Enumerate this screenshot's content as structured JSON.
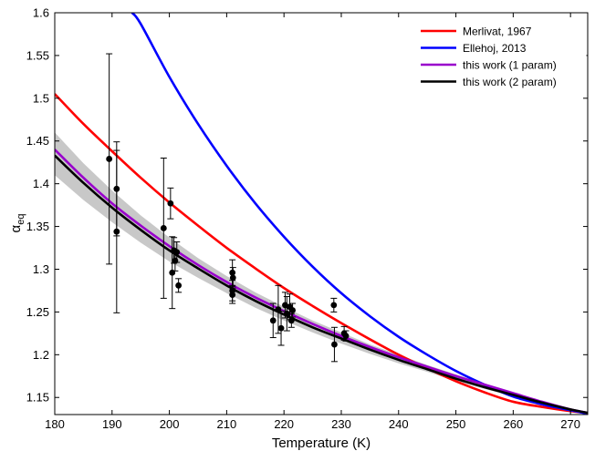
{
  "chart_data": {
    "type": "line",
    "xlabel": "Temperature (K)",
    "ylabel_main": "α",
    "ylabel_sub": "eq",
    "xlim": [
      180,
      273
    ],
    "ylim": [
      1.13,
      1.6
    ],
    "xticks": [
      180,
      190,
      200,
      210,
      220,
      230,
      240,
      250,
      260,
      270
    ],
    "yticks": [
      1.15,
      1.2,
      1.25,
      1.3,
      1.35,
      1.4,
      1.45,
      1.5,
      1.55,
      1.6
    ],
    "legend_position": "top-right",
    "band_color": "#c8c8c8",
    "series": [
      {
        "name": "Merlivat, 1967",
        "color": "#ff0000",
        "x": [
          180,
          185,
          190,
          195,
          200,
          205,
          210,
          215,
          220,
          225,
          230,
          235,
          240,
          245,
          250,
          255,
          260,
          265,
          270,
          273
        ],
        "y": [
          1.505,
          1.47,
          1.438,
          1.407,
          1.378,
          1.351,
          1.325,
          1.301,
          1.278,
          1.257,
          1.237,
          1.218,
          1.2,
          1.184,
          1.169,
          1.156,
          1.145,
          1.139,
          1.134,
          1.132
        ]
      },
      {
        "name": "Ellehoj, 2013",
        "color": "#0000ff",
        "x": [
          193.5,
          195,
          200,
          205,
          210,
          215,
          220,
          225,
          230,
          235,
          240,
          245,
          250,
          255,
          260,
          265,
          270,
          273
        ],
        "y": [
          1.6,
          1.587,
          1.525,
          1.47,
          1.421,
          1.377,
          1.338,
          1.303,
          1.272,
          1.245,
          1.221,
          1.2,
          1.181,
          1.165,
          1.151,
          1.142,
          1.135,
          1.131
        ]
      },
      {
        "name": "this work (1 param)",
        "color": "#9900cc",
        "x": [
          180,
          185,
          190,
          195,
          200,
          205,
          210,
          215,
          220,
          225,
          230,
          235,
          240,
          245,
          250,
          255,
          260,
          265,
          270,
          273
        ],
        "y": [
          1.44,
          1.407,
          1.377,
          1.351,
          1.327,
          1.305,
          1.285,
          1.267,
          1.251,
          1.236,
          1.222,
          1.209,
          1.197,
          1.186,
          1.175,
          1.165,
          1.155,
          1.145,
          1.136,
          1.132
        ]
      },
      {
        "name": "this work (2 param)",
        "color": "#000000",
        "x": [
          180,
          185,
          190,
          195,
          200,
          205,
          210,
          215,
          220,
          225,
          230,
          235,
          240,
          245,
          250,
          255,
          260,
          265,
          270,
          273
        ],
        "y": [
          1.433,
          1.401,
          1.372,
          1.346,
          1.322,
          1.301,
          1.281,
          1.263,
          1.247,
          1.232,
          1.219,
          1.206,
          1.194,
          1.183,
          1.172,
          1.162,
          1.153,
          1.144,
          1.136,
          1.132
        ]
      }
    ],
    "band": {
      "x": [
        180,
        185,
        190,
        195,
        200,
        205,
        210,
        215,
        220,
        225,
        230,
        235,
        240,
        245,
        250,
        255,
        260,
        265,
        270,
        273
      ],
      "upper": [
        1.46,
        1.424,
        1.392,
        1.363,
        1.337,
        1.313,
        1.292,
        1.273,
        1.256,
        1.24,
        1.226,
        1.212,
        1.2,
        1.188,
        1.177,
        1.166,
        1.156,
        1.146,
        1.137,
        1.133
      ],
      "lower": [
        1.41,
        1.381,
        1.355,
        1.331,
        1.309,
        1.29,
        1.272,
        1.255,
        1.24,
        1.226,
        1.213,
        1.201,
        1.19,
        1.18,
        1.169,
        1.16,
        1.151,
        1.143,
        1.135,
        1.131
      ]
    },
    "points": [
      {
        "x": 189.5,
        "y": 1.429,
        "yerr": 0.123
      },
      {
        "x": 190.8,
        "y": 1.394,
        "yerr": 0.055
      },
      {
        "x": 190.8,
        "y": 1.344,
        "yerr": 0.095
      },
      {
        "x": 199.0,
        "y": 1.348,
        "yerr": 0.082
      },
      {
        "x": 200.2,
        "y": 1.377,
        "yerr": 0.018
      },
      {
        "x": 200.5,
        "y": 1.296,
        "yerr": 0.042
      },
      {
        "x": 200.8,
        "y": 1.322,
        "yerr": 0.015
      },
      {
        "x": 201.0,
        "y": 1.31,
        "yerr": 0.012
      },
      {
        "x": 201.3,
        "y": 1.32,
        "yerr": 0.012
      },
      {
        "x": 201.6,
        "y": 1.281,
        "yerr": 0.008
      },
      {
        "x": 211.0,
        "y": 1.296,
        "yerr": 0.015
      },
      {
        "x": 211.1,
        "y": 1.29,
        "yerr": 0.012
      },
      {
        "x": 211.0,
        "y": 1.275,
        "yerr": 0.012
      },
      {
        "x": 211.0,
        "y": 1.27,
        "yerr": 0.01
      },
      {
        "x": 218.1,
        "y": 1.24,
        "yerr": 0.02
      },
      {
        "x": 219.0,
        "y": 1.253,
        "yerr": 0.028
      },
      {
        "x": 219.5,
        "y": 1.231,
        "yerr": 0.02
      },
      {
        "x": 220.2,
        "y": 1.258,
        "yerr": 0.015
      },
      {
        "x": 220.5,
        "y": 1.248,
        "yerr": 0.02
      },
      {
        "x": 221.0,
        "y": 1.256,
        "yerr": 0.015
      },
      {
        "x": 221.3,
        "y": 1.24,
        "yerr": 0.008
      },
      {
        "x": 221.5,
        "y": 1.252,
        "yerr": 0.008
      },
      {
        "x": 228.7,
        "y": 1.258,
        "yerr": 0.008
      },
      {
        "x": 228.8,
        "y": 1.212,
        "yerr": 0.02
      },
      {
        "x": 230.5,
        "y": 1.225,
        "yerr": 0.008
      },
      {
        "x": 230.8,
        "y": 1.222,
        "yerr": 0.006
      }
    ]
  }
}
